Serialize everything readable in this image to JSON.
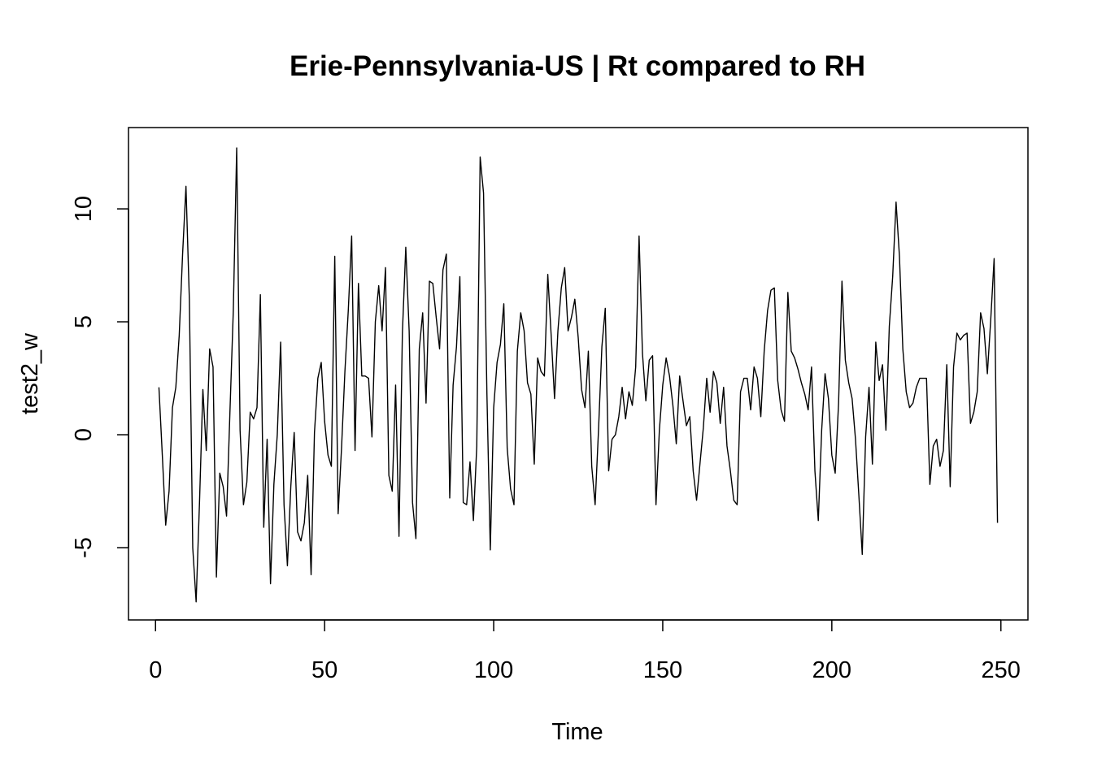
{
  "chart_data": {
    "type": "line",
    "title": "Erie-Pennsylvania-US | Rt compared to RH",
    "xlabel": "Time",
    "ylabel": "test2_w",
    "xlim": [
      -8,
      258
    ],
    "ylim": [
      -8.2,
      13.6
    ],
    "xticks": [
      0,
      50,
      100,
      150,
      200,
      250
    ],
    "yticks": [
      -5,
      0,
      5,
      10
    ],
    "grid": false,
    "series": [
      {
        "x_start": 1,
        "values": [
          2.1,
          -0.9,
          -4.0,
          -2.5,
          1.2,
          2.1,
          4.4,
          8.0,
          11.0,
          6.0,
          -5.0,
          -7.4,
          -3.0,
          2.0,
          -0.7,
          3.8,
          3.0,
          -6.3,
          -1.7,
          -2.3,
          -3.6,
          1.0,
          5.5,
          12.7,
          0.2,
          -3.1,
          -2.1,
          1.0,
          0.7,
          1.2,
          6.2,
          -4.1,
          -0.2,
          -6.6,
          -2.2,
          0.0,
          4.1,
          -3.1,
          -5.8,
          -2.3,
          0.1,
          -4.3,
          -4.7,
          -3.9,
          -1.8,
          -6.2,
          0.1,
          2.5,
          3.2,
          0.6,
          -0.9,
          -1.4,
          7.9,
          -3.5,
          -0.6,
          2.8,
          5.5,
          8.8,
          -0.7,
          6.7,
          2.6,
          2.6,
          2.5,
          -0.1,
          5.0,
          6.6,
          4.6,
          7.4,
          -1.8,
          -2.5,
          2.2,
          -4.5,
          4.5,
          8.3,
          4.6,
          -3.0,
          -4.6,
          3.8,
          5.4,
          1.4,
          6.8,
          6.7,
          5.2,
          3.8,
          7.3,
          8.0,
          -2.8,
          2.2,
          3.9,
          7.0,
          -3.0,
          -3.1,
          -1.2,
          -3.8,
          -0.5,
          12.3,
          10.7,
          1.8,
          -5.1,
          1.2,
          3.2,
          4.0,
          5.8,
          -0.6,
          -2.4,
          -3.1,
          3.7,
          5.4,
          4.6,
          2.3,
          1.8,
          -1.3,
          3.4,
          2.8,
          2.6,
          7.1,
          4.4,
          1.6,
          4.6,
          6.5,
          7.4,
          4.6,
          5.2,
          6.0,
          4.3,
          2.0,
          1.2,
          3.7,
          -1.4,
          -3.1,
          0.2,
          3.9,
          5.6,
          -1.6,
          -0.2,
          0.0,
          0.8,
          2.1,
          0.7,
          1.9,
          1.3,
          3.0,
          8.8,
          3.6,
          1.5,
          3.3,
          3.5,
          -3.1,
          0.2,
          2.2,
          3.4,
          2.6,
          1.3,
          -0.4,
          2.6,
          1.5,
          0.4,
          0.8,
          -1.6,
          -2.9,
          -1.3,
          0.3,
          2.5,
          1.0,
          2.8,
          2.3,
          0.5,
          2.1,
          -0.5,
          -1.6,
          -2.9,
          -3.1,
          1.9,
          2.5,
          2.5,
          1.1,
          3.0,
          2.5,
          0.8,
          3.7,
          5.5,
          6.4,
          6.5,
          2.4,
          1.1,
          0.6,
          6.3,
          3.7,
          3.4,
          2.9,
          2.3,
          1.8,
          1.1,
          3.0,
          -1.6,
          -3.8,
          0.2,
          2.7,
          1.6,
          -0.9,
          -1.7,
          1.4,
          6.8,
          3.3,
          2.3,
          1.6,
          -0.2,
          -2.7,
          -5.3,
          -0.1,
          2.1,
          -1.3,
          4.1,
          2.4,
          3.1,
          0.2,
          4.8,
          7.0,
          10.3,
          7.9,
          3.8,
          1.9,
          1.2,
          1.4,
          2.1,
          2.5,
          2.5,
          2.5,
          -2.2,
          -0.5,
          -0.2,
          -1.4,
          -0.7,
          3.1,
          -2.3,
          3.0,
          4.5,
          4.2,
          4.4,
          4.5,
          0.5,
          1.0,
          1.9,
          5.4,
          4.7,
          2.7,
          5.1,
          7.8,
          -3.9
        ],
        "color": "#000000"
      }
    ]
  }
}
